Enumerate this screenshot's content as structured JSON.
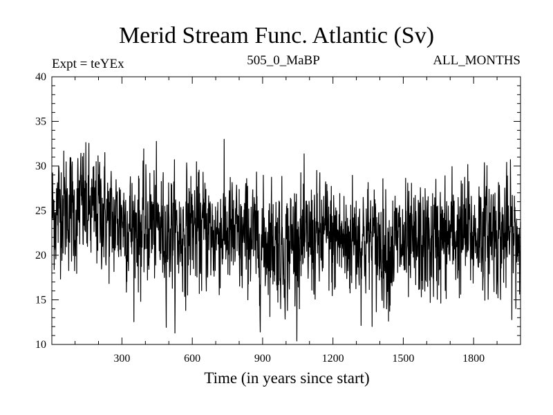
{
  "header": {
    "title": "Merid Stream Func. Atlantic (Sv)",
    "expt": "Expt = teYEx",
    "run_id": "505_0_MaBP",
    "period": "ALL_MONTHS"
  },
  "chart_data": {
    "type": "line",
    "title": "Merid Stream Func. Atlantic (Sv)",
    "xlabel": "Time (in years since start)",
    "ylabel": "",
    "xlim": [
      1,
      2000
    ],
    "ylim": [
      10,
      40
    ],
    "grid": false,
    "x_ticks": [
      300,
      600,
      900,
      1200,
      1500,
      1800
    ],
    "y_ticks": [
      10,
      15,
      20,
      25,
      30,
      35,
      40
    ],
    "x_tick_labels": [
      "300",
      "600",
      "900",
      "1200",
      "1500",
      "1800"
    ],
    "y_tick_labels": [
      "10",
      "15",
      "20",
      "25",
      "30",
      "35",
      "40"
    ],
    "line_color": "#000000",
    "series": [
      {
        "x": [
          1,
          20,
          40,
          60,
          80,
          100,
          120,
          150,
          180,
          210,
          240,
          270,
          300,
          330,
          360,
          390,
          420,
          450,
          480,
          510,
          540,
          570,
          600,
          630,
          660,
          690,
          720,
          750,
          780,
          810,
          840,
          870,
          900,
          930,
          960,
          990,
          1020,
          1050,
          1080,
          1110,
          1140,
          1170,
          1200,
          1230,
          1260,
          1290,
          1320,
          1350,
          1380,
          1410,
          1440,
          1470,
          1500,
          1530,
          1560,
          1590,
          1620,
          1650,
          1680,
          1710,
          1740,
          1770,
          1800,
          1830,
          1860,
          1890,
          1920,
          1950,
          1980,
          2000
        ],
        "y": [
          25,
          24.5,
          26,
          25,
          25.5,
          24,
          26,
          25,
          24.5,
          25.5,
          24,
          23.5,
          24.5,
          23,
          23.5,
          22.5,
          23.5,
          23,
          22.5,
          23,
          22,
          22.5,
          23.5,
          22.5,
          23,
          22,
          23,
          22.5,
          22,
          21.5,
          22.5,
          21.5,
          21,
          22,
          21.5,
          20.5,
          21.5,
          22,
          21,
          22,
          21.5,
          22.5,
          21.5,
          22,
          21,
          22.5,
          21.5,
          22,
          21,
          21.5,
          20.5,
          21.5,
          21,
          20.5,
          21,
          21.5,
          21,
          22,
          21.5,
          22.5,
          22,
          22.5,
          22,
          23,
          22.5,
          23,
          22,
          22.5,
          21.5,
          22
        ]
      }
    ]
  }
}
